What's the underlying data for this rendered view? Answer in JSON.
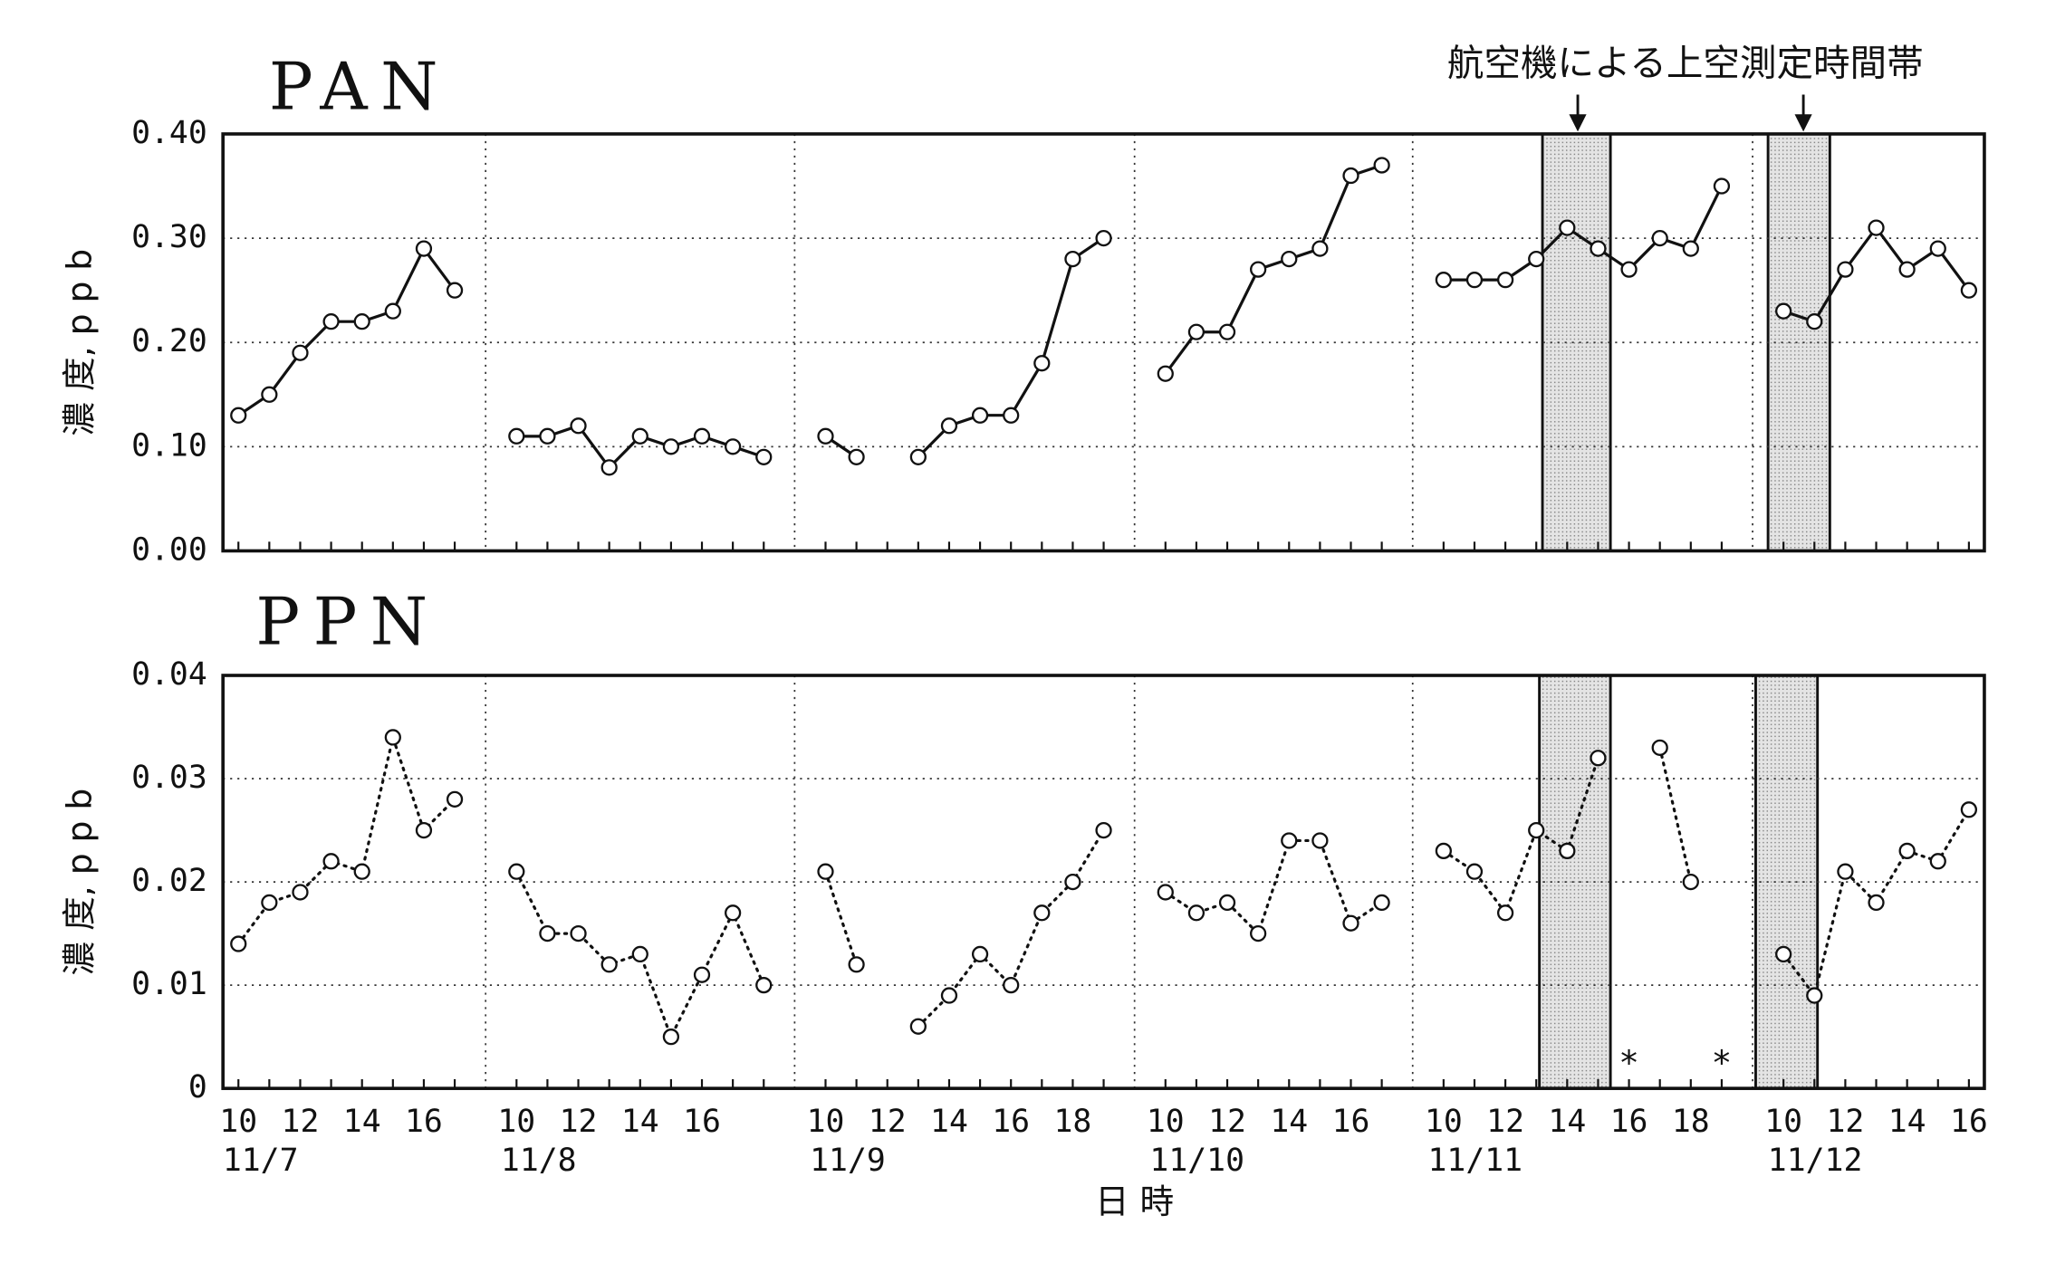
{
  "chart_data": [
    {
      "type": "line",
      "title": "PAN",
      "ylabel": "濃 度, p p b",
      "line_style": "solid",
      "color": "#111111",
      "note": "航空機による上空測定時間帯",
      "ylim": [
        0,
        0.4
      ],
      "yticks": [
        {
          "value": 0,
          "label": "0.00"
        },
        {
          "value": 0.1,
          "label": "0.10"
        },
        {
          "value": 0.2,
          "label": "0.20"
        },
        {
          "value": 0.3,
          "label": "0.30"
        },
        {
          "value": 0.4,
          "label": "0.40"
        }
      ],
      "grid": true,
      "shaded": [
        {
          "day": "11/11",
          "from": 13.2,
          "to": 15.4
        },
        {
          "day": "11/12",
          "from": 9.5,
          "to": 11.5
        }
      ],
      "series": [
        {
          "name": "PAN",
          "color": "#111111",
          "values": [
            0.13,
            0.15,
            0.19,
            0.22,
            0.22,
            0.23,
            0.29,
            0.25,
            0.11,
            0.11,
            0.12,
            0.08,
            0.11,
            0.1,
            0.11,
            0.1,
            0.09,
            0.11,
            0.09,
            null,
            0.09,
            0.12,
            0.13,
            0.13,
            0.18,
            0.28,
            0.3,
            0.17,
            0.21,
            0.21,
            0.27,
            0.28,
            0.29,
            0.36,
            0.37,
            0.26,
            0.26,
            0.26,
            0.28,
            0.31,
            0.29,
            0.27,
            0.3,
            0.29,
            0.35,
            0.23,
            0.22,
            0.27,
            0.31,
            0.27,
            0.29,
            0.25
          ]
        }
      ]
    },
    {
      "type": "line",
      "title": "PPN",
      "ylabel": "濃 度, p p b",
      "xlabel": "日 時",
      "line_style": "dotted",
      "color": "#111111",
      "ylim": [
        0,
        0.04
      ],
      "yticks": [
        0,
        0.01,
        0.02,
        0.03,
        0.04
      ],
      "grid": true,
      "shaded": [
        {
          "day": "11/11",
          "from": 13.1,
          "to": 15.4
        },
        {
          "day": "11/12",
          "from": 9.1,
          "to": 11.1
        }
      ],
      "groups": [
        {
          "label": "11/7",
          "categories": [
            "10",
            null,
            "12",
            null,
            "14",
            null,
            "16",
            null
          ]
        },
        {
          "label": "11/8",
          "categories": [
            "10",
            null,
            "12",
            null,
            "14",
            null,
            "16",
            null,
            null
          ]
        },
        {
          "label": "11/9",
          "categories": [
            "10",
            null,
            "12",
            null,
            "14",
            null,
            "16",
            null,
            "18",
            null
          ]
        },
        {
          "label": "11/10",
          "categories": [
            "10",
            null,
            "12",
            null,
            "14",
            null,
            "16",
            null
          ]
        },
        {
          "label": "11/11",
          "categories": [
            "10",
            null,
            "12",
            null,
            "14",
            null,
            "16",
            null,
            "18",
            null
          ]
        },
        {
          "label": "11/12",
          "categories": [
            "10",
            null,
            "12",
            null,
            "14",
            null,
            "16"
          ]
        }
      ],
      "series": [
        {
          "name": "PPN",
          "color": "#111111",
          "values": [
            0.014,
            0.018,
            0.019,
            0.022,
            0.021,
            0.034,
            0.025,
            0.028,
            0.021,
            0.015,
            0.015,
            0.012,
            0.013,
            0.005,
            0.011,
            0.017,
            0.01,
            0.021,
            0.012,
            null,
            0.006,
            0.009,
            0.013,
            0.01,
            0.017,
            0.02,
            0.025,
            0.019,
            0.017,
            0.018,
            0.015,
            0.024,
            0.024,
            0.016,
            0.018,
            0.023,
            0.021,
            0.017,
            0.025,
            0.023,
            0.032,
            null,
            0.033,
            0.02,
            null,
            0.013,
            0.009,
            0.021,
            0.018,
            0.023,
            0.022,
            0.027
          ],
          "symbols": [
            null,
            null,
            null,
            null,
            null,
            null,
            null,
            null,
            null,
            null,
            null,
            null,
            null,
            null,
            null,
            null,
            null,
            null,
            null,
            null,
            null,
            null,
            null,
            null,
            null,
            null,
            null,
            null,
            null,
            null,
            null,
            null,
            null,
            null,
            null,
            null,
            null,
            null,
            null,
            null,
            null,
            "*",
            null,
            null,
            "*",
            null,
            null,
            null,
            null,
            null,
            null,
            null
          ]
        }
      ]
    }
  ]
}
